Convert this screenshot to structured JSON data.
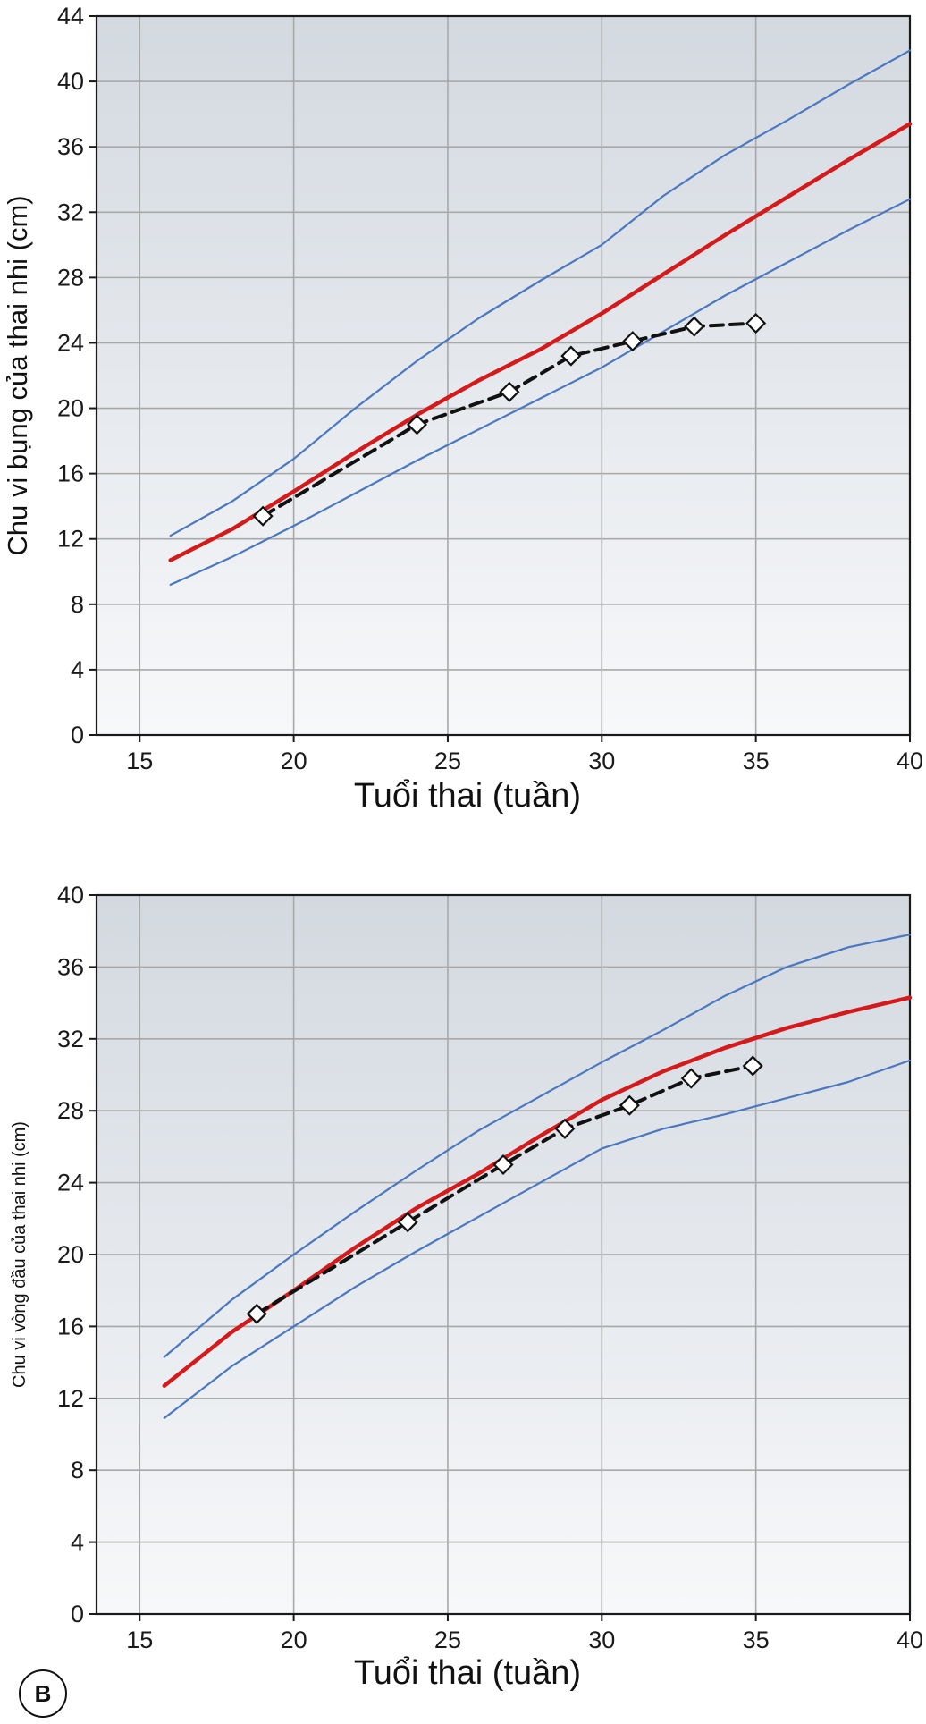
{
  "chart_data": [
    {
      "type": "line",
      "panel_label": "",
      "xlabel": "Tuổi thai (tuần)",
      "ylabel": "Chu vi bụng của thai nhi (cm)",
      "xlim": [
        13.6,
        40
      ],
      "ylim": [
        0,
        44
      ],
      "x_ticks": [
        15,
        20,
        25,
        30,
        35,
        40
      ],
      "y_ticks": [
        0,
        4,
        8,
        12,
        16,
        20,
        24,
        28,
        32,
        36,
        40,
        44
      ],
      "grid": true,
      "colors": {
        "median": "#d41a1a",
        "percentile": "#4a78c0",
        "patient": "#111111"
      },
      "series": [
        {
          "role": "upper-percentile",
          "x": [
            16,
            18,
            20,
            22,
            24,
            26,
            28,
            30,
            32,
            34,
            36,
            38,
            40
          ],
          "y": [
            12.2,
            14.3,
            16.9,
            20.0,
            22.9,
            25.5,
            27.8,
            30.0,
            33.0,
            35.5,
            37.6,
            39.8,
            41.9
          ]
        },
        {
          "role": "median",
          "x": [
            16,
            18,
            20,
            22,
            24,
            26,
            28,
            30,
            32,
            34,
            36,
            38,
            40
          ],
          "y": [
            10.7,
            12.6,
            14.9,
            17.3,
            19.6,
            21.7,
            23.6,
            25.8,
            28.2,
            30.6,
            32.9,
            35.2,
            37.4
          ]
        },
        {
          "role": "lower-percentile",
          "x": [
            16,
            18,
            20,
            22,
            24,
            26,
            28,
            30,
            32,
            34,
            36,
            38,
            40
          ],
          "y": [
            9.2,
            10.9,
            12.8,
            14.8,
            16.8,
            18.7,
            20.6,
            22.5,
            24.7,
            26.9,
            28.9,
            30.9,
            32.8
          ]
        },
        {
          "role": "patient",
          "x": [
            19,
            24,
            27,
            29,
            31,
            33,
            35
          ],
          "y": [
            13.4,
            19.0,
            21.0,
            23.2,
            24.1,
            25.0,
            25.2
          ]
        }
      ]
    },
    {
      "type": "line",
      "panel_label": "B",
      "xlabel": "Tuổi thai (tuần)",
      "ylabel": "Chu vi vòng đầu của thai nhi (cm)",
      "xlim": [
        13.6,
        40
      ],
      "ylim": [
        0,
        40
      ],
      "x_ticks": [
        15,
        20,
        25,
        30,
        35,
        40
      ],
      "y_ticks": [
        0,
        4,
        8,
        12,
        16,
        20,
        24,
        28,
        32,
        36,
        40
      ],
      "grid": true,
      "colors": {
        "median": "#d41a1a",
        "percentile": "#4a78c0",
        "patient": "#111111"
      },
      "series": [
        {
          "role": "upper-percentile",
          "x": [
            15.8,
            18,
            20,
            22,
            24,
            26,
            28,
            30,
            32,
            34,
            36,
            38,
            40
          ],
          "y": [
            14.3,
            17.5,
            20.0,
            22.4,
            24.7,
            26.9,
            28.8,
            30.7,
            32.5,
            34.4,
            36.0,
            37.1,
            37.8
          ]
        },
        {
          "role": "median",
          "x": [
            15.8,
            18,
            20,
            22,
            24,
            26,
            28,
            30,
            32,
            34,
            36,
            38,
            40
          ],
          "y": [
            12.7,
            15.7,
            18.0,
            20.4,
            22.6,
            24.5,
            26.6,
            28.6,
            30.2,
            31.5,
            32.6,
            33.5,
            34.3
          ]
        },
        {
          "role": "lower-percentile",
          "x": [
            15.8,
            18,
            20,
            22,
            24,
            26,
            28,
            30,
            32,
            34,
            36,
            38,
            40
          ],
          "y": [
            10.9,
            13.8,
            16.0,
            18.2,
            20.2,
            22.1,
            24.0,
            25.9,
            27.0,
            27.8,
            28.7,
            29.6,
            30.8
          ]
        },
        {
          "role": "patient",
          "x": [
            18.8,
            23.7,
            26.8,
            28.8,
            30.9,
            32.9,
            34.9
          ],
          "y": [
            16.7,
            21.8,
            25.0,
            27.0,
            28.3,
            29.8,
            30.5
          ]
        }
      ]
    }
  ]
}
